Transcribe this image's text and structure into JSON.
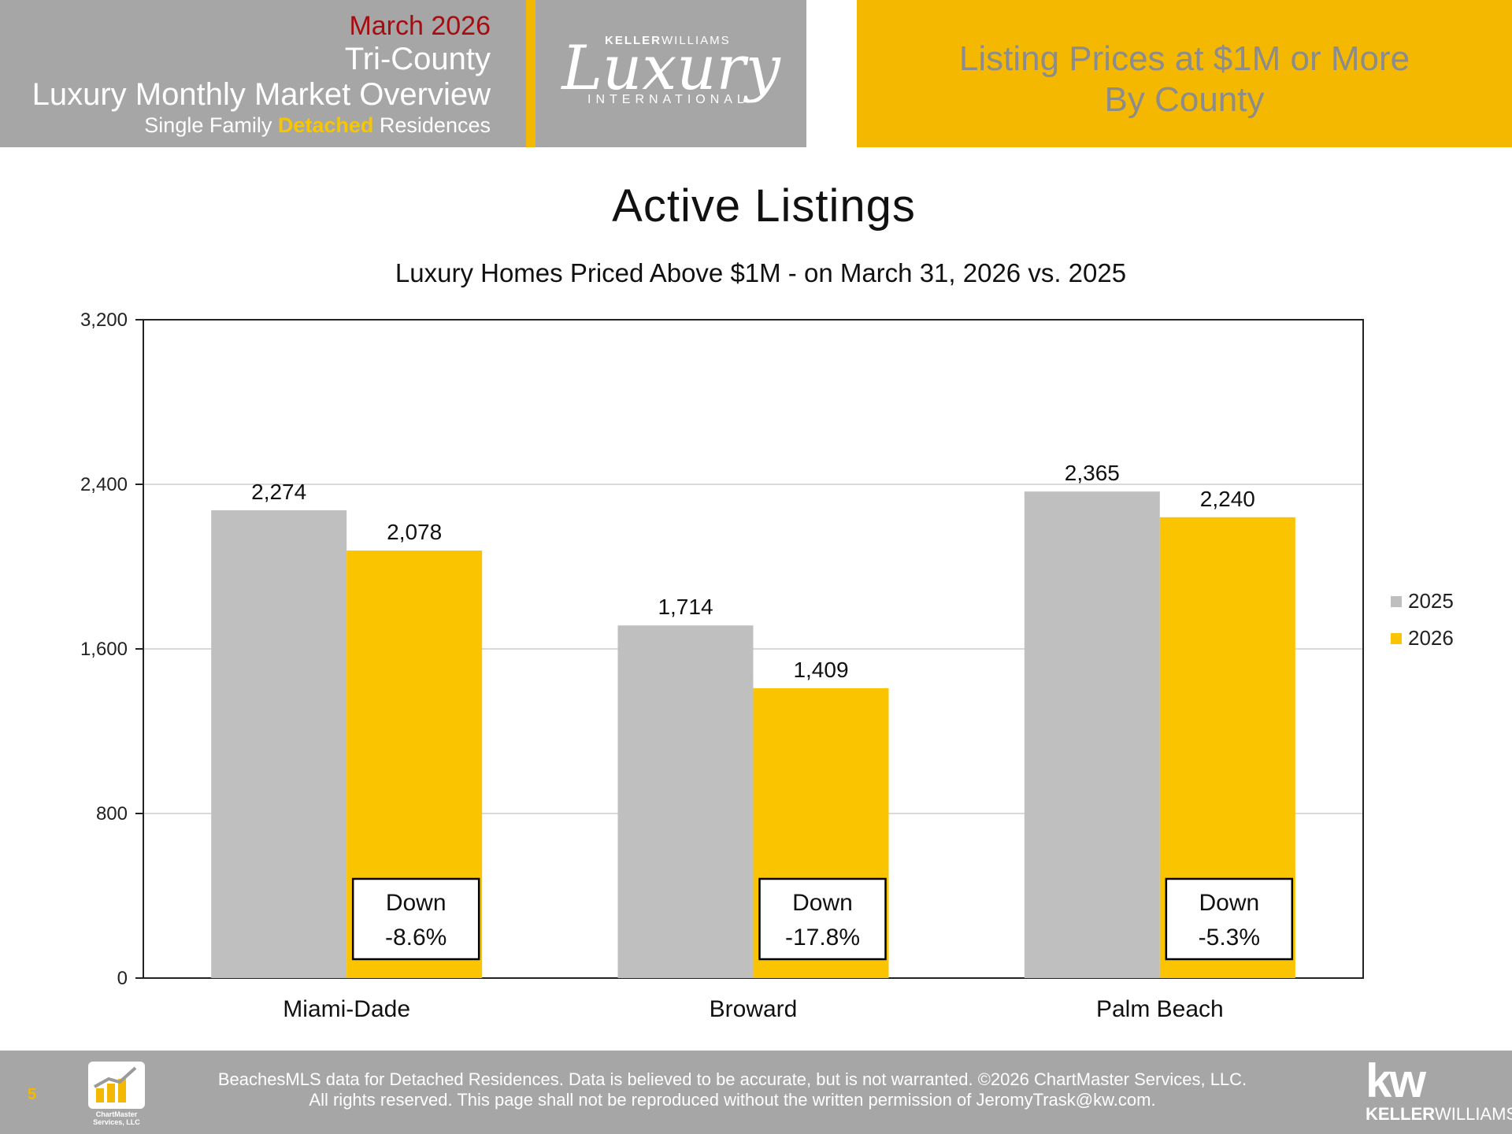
{
  "header": {
    "date": "March 2026",
    "region": "Tri-County",
    "overview": "Luxury Monthly Market Overview",
    "subtitle_pre": "Single Family ",
    "subtitle_highlight": "Detached",
    "subtitle_post": " Residences",
    "logo_top_bold": "KELLER",
    "logo_top_rest": "WILLIAMS",
    "logo_script": "Luxury",
    "logo_sub": "INTERNATIONAL",
    "right_line1": "Listing Prices at $1M or More",
    "right_line2": "By County"
  },
  "colors": {
    "series_2025": "#bfbfbf",
    "series_2026": "#fac400",
    "header_gray": "#a6a6a6",
    "header_gold": "#f5b800",
    "date_red": "#a50d12"
  },
  "chart_data": {
    "type": "bar",
    "title": "Active Listings",
    "subtitle": "Luxury Homes Priced Above $1M - on March 31,  2026 vs. 2025",
    "categories": [
      "Miami-Dade",
      "Broward",
      "Palm Beach"
    ],
    "series": [
      {
        "name": "2025",
        "values": [
          2274,
          1714,
          2365
        ]
      },
      {
        "name": "2026",
        "values": [
          2078,
          1409,
          2240
        ]
      }
    ],
    "data_labels": [
      [
        "2,274",
        "1,714",
        "2,365"
      ],
      [
        "2,078",
        "1,409",
        "2,240"
      ]
    ],
    "ylim": [
      0,
      3200
    ],
    "yticks": [
      0,
      800,
      1600,
      2400,
      3200
    ],
    "ytick_labels": [
      "0",
      "800",
      "1,600",
      "2,400",
      "3,200"
    ],
    "grid": true,
    "legend": "right",
    "annotations": [
      {
        "line1": "Down",
        "line2": "-8.6%"
      },
      {
        "line1": "Down",
        "line2": "-17.8%"
      },
      {
        "line1": "Down",
        "line2": "-5.3%"
      }
    ]
  },
  "footer": {
    "page_number": "5",
    "chartmaster_logo_text": "ChartMaster Services, LLC",
    "disclaimer_line1": "BeachesMLS data for Detached Residences.  Data is believed to be accurate, but is not warranted.   ©2026  ChartMaster Services, LLC.",
    "disclaimer_line2": "All rights reserved. This page shall not be reproduced without the written permission of JeromyTrask@kw.com.",
    "kw_mark": "kw",
    "kw_name_bold": "KELLER",
    "kw_name_rest": "WILLIAMS."
  }
}
